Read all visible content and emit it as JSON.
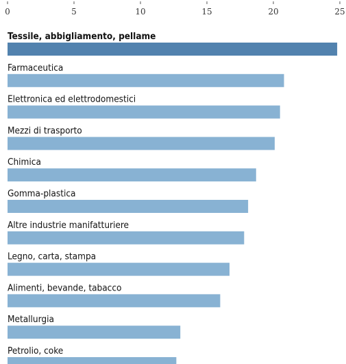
{
  "chart_data": {
    "type": "bar",
    "orientation": "horizontal",
    "xlim": [
      0,
      25
    ],
    "xticks": [
      "0",
      "5",
      "10",
      "15",
      "20",
      "25"
    ],
    "categories": [
      "Tessile, abbigliamento, pellame",
      "Farmaceutica",
      "Elettronica ed elettrodomestici",
      "Mezzi di trasporto",
      "Chimica",
      "Gomma-plastica",
      "Altre industrie manifatturiere",
      "Legno, carta, stampa",
      "Alimenti, bevande, tabacco",
      "Metallurgia",
      "Petrolio, coke"
    ],
    "values": [
      24.8,
      20.8,
      20.5,
      20.1,
      18.7,
      18.1,
      17.8,
      16.7,
      16.0,
      13.0,
      12.7
    ],
    "highlight_index": 0,
    "colors": {
      "bar": "#88b2d3",
      "bar_highlight": "#5282ae",
      "tick_line": "#555555",
      "text": "#111111"
    },
    "grid": false,
    "legend": "none"
  }
}
